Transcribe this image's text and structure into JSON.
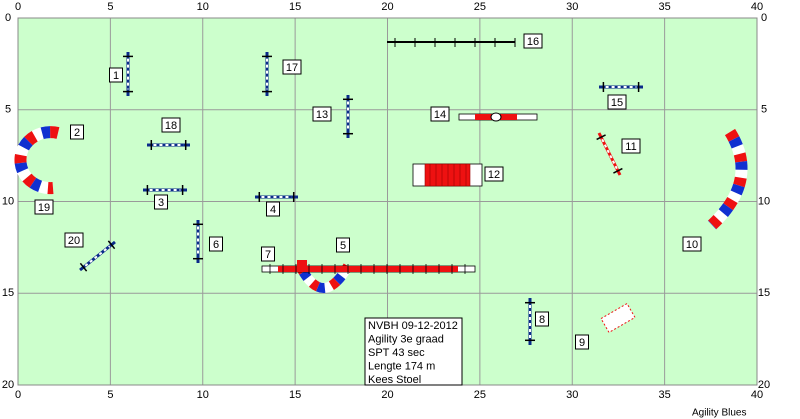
{
  "axes": {
    "xlim": [
      0,
      40
    ],
    "ylim": [
      0,
      20
    ],
    "xticks": [
      0,
      5,
      10,
      15,
      20,
      25,
      30,
      35,
      40
    ],
    "yticks": [
      0,
      5,
      10,
      15,
      20
    ]
  },
  "obstacles": [
    "1",
    "2",
    "3",
    "4",
    "5",
    "6",
    "7",
    "8",
    "9",
    "10",
    "11",
    "12",
    "13",
    "14",
    "15",
    "16",
    "17",
    "18",
    "19",
    "20"
  ],
  "info": [
    "NVBH 09-12-2012",
    "Agility 3e graad",
    "SPT 43 sec",
    "Lengte 174 m",
    "Kees Stoel"
  ],
  "footer": "Agility Blues"
}
